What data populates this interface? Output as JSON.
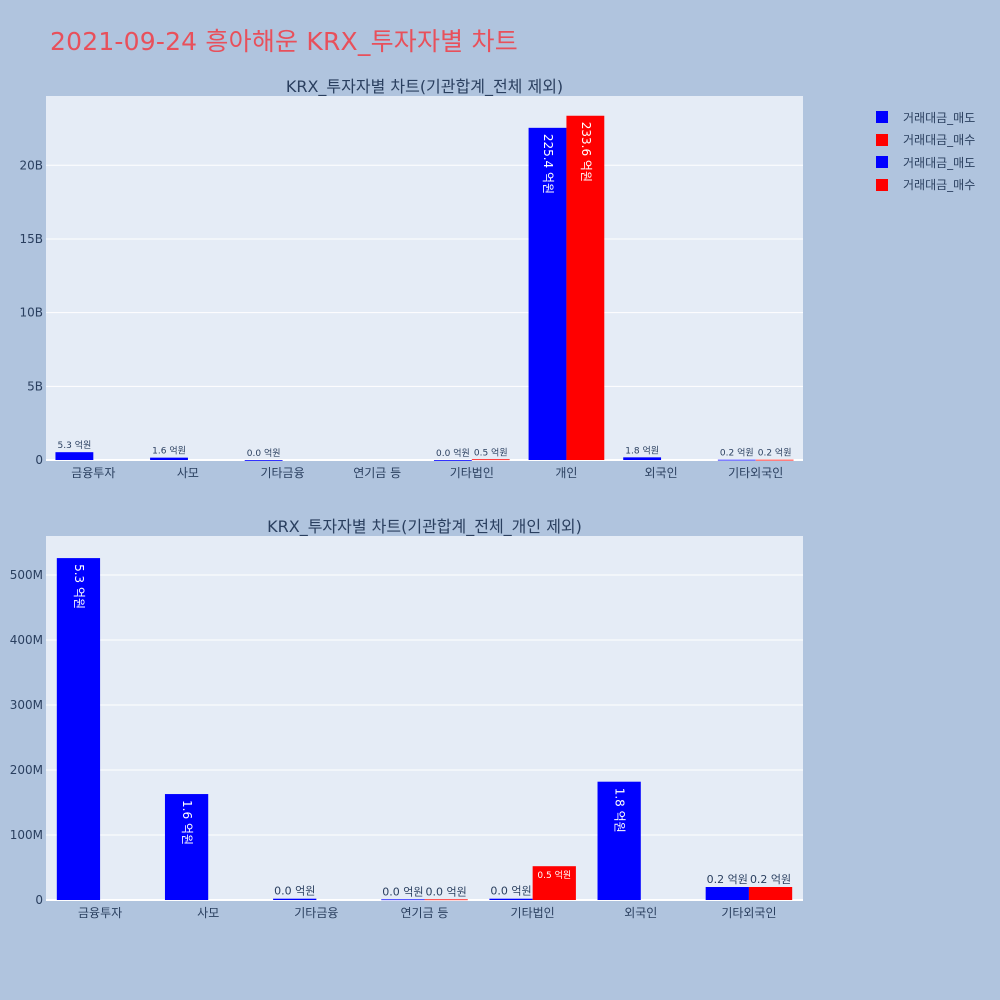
{
  "page": {
    "title": "2021-09-24 흥아해운 KRX_투자자별 차트"
  },
  "colors": {
    "sell": "#0000ff",
    "buy": "#ff0000",
    "plot_bg": "#e5ecf6",
    "grid": "#ffffff",
    "text": "#2a3f5f"
  },
  "legend": [
    {
      "label": "거래대금_매도",
      "color": "#0000ff"
    },
    {
      "label": "거래대금_매수",
      "color": "#ff0000"
    },
    {
      "label": "거래대금_매도",
      "color": "#0000ff"
    },
    {
      "label": "거래대금_매수",
      "color": "#ff0000"
    }
  ],
  "chart_data": [
    {
      "type": "bar",
      "title": "KRX_투자자별 차트(기관합계_전체 제외)",
      "categories": [
        "금융투자",
        "사모",
        "기타금융",
        "연기금 등",
        "기타법인",
        "개인",
        "외국인",
        "기타외국인"
      ],
      "series": [
        {
          "name": "거래대금_매도",
          "values": [
            530000000,
            160000000,
            0,
            null,
            0,
            22540000000,
            180000000,
            20000000
          ],
          "labels": [
            "5.3 억원",
            "1.6 억원",
            "0.0 억원",
            null,
            "0.0 억원",
            "225.4 억원",
            "1.8 억원",
            "0.2 억원"
          ]
        },
        {
          "name": "거래대금_매수",
          "values": [
            null,
            null,
            null,
            null,
            50000000,
            23360000000,
            null,
            20000000
          ],
          "labels": [
            null,
            null,
            null,
            null,
            "0.5 억원",
            "233.6 억원",
            null,
            "0.2 억원"
          ]
        }
      ],
      "ylim": [
        0,
        24700000000
      ],
      "yticks": [
        {
          "value": 0,
          "label": "0"
        },
        {
          "value": 5000000000,
          "label": "5B"
        },
        {
          "value": 10000000000,
          "label": "10B"
        },
        {
          "value": 15000000000,
          "label": "15B"
        },
        {
          "value": 20000000000,
          "label": "20B"
        }
      ],
      "xlabel": "",
      "ylabel": ""
    },
    {
      "type": "bar",
      "title": "KRX_투자자별 차트(기관합계_전체_개인 제외)",
      "categories": [
        "금융투자",
        "사모",
        "기타금융",
        "연기금 등",
        "기타법인",
        "외국인",
        "기타외국인"
      ],
      "series": [
        {
          "name": "거래대금_매도",
          "values": [
            526000000,
            163000000,
            2000000,
            1000000,
            2000000,
            182000000,
            20000000
          ],
          "labels": [
            "5.3 억원",
            "1.6 억원",
            "0.0 억원",
            "0.0 억원",
            "0.0 억원",
            "1.8 억원",
            "0.2 억원"
          ]
        },
        {
          "name": "거래대금_매수",
          "values": [
            null,
            null,
            null,
            1000000,
            52000000,
            null,
            20000000
          ],
          "labels": [
            null,
            null,
            null,
            "0.0 억원",
            "0.5 억원",
            null,
            "0.2 억원"
          ]
        }
      ],
      "ylim": [
        0,
        560000000
      ],
      "yticks": [
        {
          "value": 0,
          "label": "0"
        },
        {
          "value": 100000000,
          "label": "100M"
        },
        {
          "value": 200000000,
          "label": "200M"
        },
        {
          "value": 300000000,
          "label": "300M"
        },
        {
          "value": 400000000,
          "label": "400M"
        },
        {
          "value": 500000000,
          "label": "500M"
        }
      ],
      "xlabel": "",
      "ylabel": ""
    }
  ]
}
